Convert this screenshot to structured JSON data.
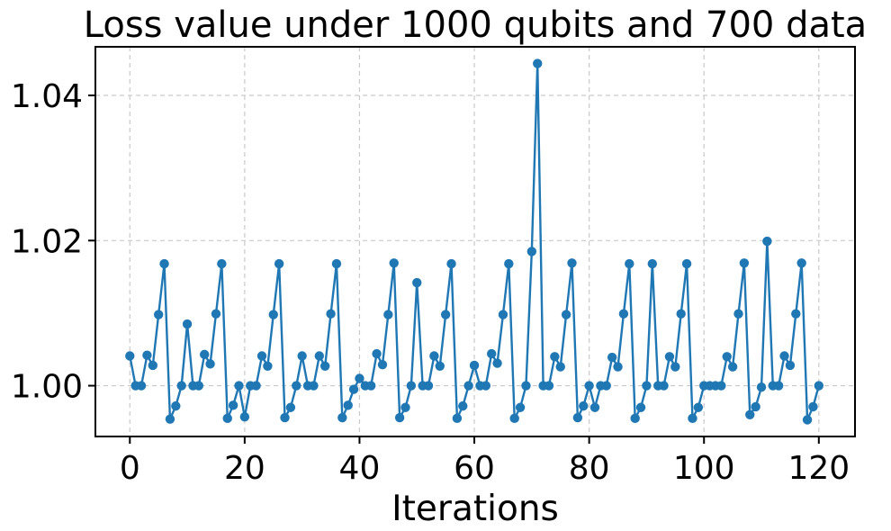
{
  "chart_data": {
    "type": "line",
    "title": "Loss value under 1000 qubits and 700 data",
    "xlabel": "Iterations",
    "ylabel": "",
    "legend": null,
    "grid": true,
    "grid_style": "dashed",
    "line_color": "#1f77b4",
    "marker": "circle",
    "x_ticks": [
      0,
      20,
      40,
      60,
      80,
      100,
      120
    ],
    "y_ticks": [
      "1.00",
      "1.02",
      "1.04"
    ],
    "y_tick_values": [
      1.0,
      1.02,
      1.04
    ],
    "xlim": [
      -6.0,
      126.3
    ],
    "ylim": [
      0.993,
      1.0467
    ],
    "x": [
      0,
      1,
      2,
      3,
      4,
      5,
      6,
      7,
      8,
      9,
      10,
      11,
      12,
      13,
      14,
      15,
      16,
      17,
      18,
      19,
      20,
      21,
      22,
      23,
      24,
      25,
      26,
      27,
      28,
      29,
      30,
      31,
      32,
      33,
      34,
      35,
      36,
      37,
      38,
      39,
      40,
      41,
      42,
      43,
      44,
      45,
      46,
      47,
      48,
      49,
      50,
      51,
      52,
      53,
      54,
      55,
      56,
      57,
      58,
      59,
      60,
      61,
      62,
      63,
      64,
      65,
      66,
      67,
      68,
      69,
      70,
      71,
      72,
      73,
      74,
      75,
      76,
      77,
      78,
      79,
      80,
      81,
      82,
      83,
      84,
      85,
      86,
      87,
      88,
      89,
      90,
      91,
      92,
      93,
      94,
      95,
      96,
      97,
      98,
      99,
      100,
      101,
      102,
      103,
      104,
      105,
      106,
      107,
      108,
      109,
      110,
      111,
      112,
      113,
      114,
      115,
      116,
      117,
      118,
      119,
      120
    ],
    "values": [
      1.0041,
      1.0,
      1.0,
      1.0042,
      1.0028,
      1.0098,
      1.0168,
      0.9954,
      0.9972,
      1.0,
      1.0085,
      1.0,
      1.0,
      1.0043,
      1.003,
      1.0099,
      1.0168,
      0.9955,
      0.9973,
      1.0,
      0.9957,
      1.0,
      1.0,
      1.0041,
      1.0027,
      1.0098,
      1.0168,
      0.9956,
      0.997,
      1.0,
      1.0041,
      1.0,
      1.0,
      1.0041,
      1.0027,
      1.0099,
      1.0168,
      0.9956,
      0.9973,
      0.9995,
      1.001,
      1.0,
      1.0,
      1.0044,
      1.0029,
      1.0098,
      1.0169,
      0.9956,
      0.997,
      1.0,
      1.0142,
      1.0,
      1.0,
      1.0041,
      1.0027,
      1.0098,
      1.0168,
      0.9955,
      0.9972,
      1.0,
      1.0028,
      1.0,
      1.0,
      1.0044,
      1.0031,
      1.0098,
      1.0168,
      0.9955,
      0.997,
      1.0,
      1.0185,
      1.0444,
      1.0,
      1.0,
      1.004,
      1.0026,
      1.0098,
      1.0169,
      0.9956,
      0.9972,
      1.0,
      0.997,
      1.0,
      1.0,
      1.0039,
      1.0026,
      1.0099,
      1.0168,
      0.9955,
      0.997,
      1.0,
      1.0168,
      1.0,
      1.0,
      1.004,
      1.0026,
      1.0099,
      1.0168,
      0.9955,
      0.997,
      1.0,
      1.0,
      1.0,
      1.0,
      1.004,
      1.0026,
      1.0099,
      1.0169,
      0.996,
      0.9971,
      0.9998,
      1.0199,
      1.0,
      1.0,
      1.0041,
      1.0028,
      1.0099,
      1.0169,
      0.9953,
      0.9971,
      1.0
    ]
  }
}
